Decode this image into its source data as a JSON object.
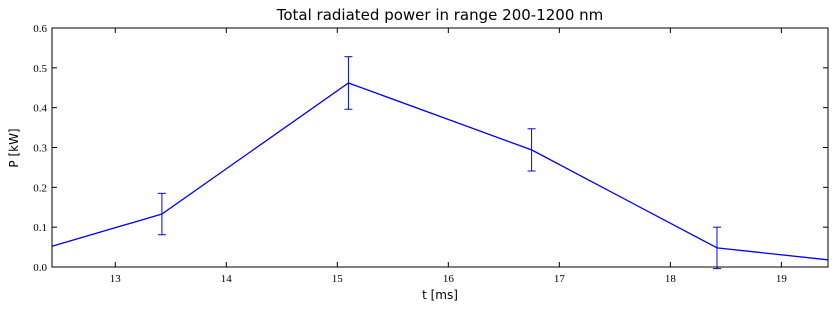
{
  "chart_data": {
    "type": "line",
    "title": "Total radiated power in range 200-1200 nm",
    "x_label": "t [ms]",
    "y_label": "P [kW]",
    "x": [
      12.43,
      13.42,
      15.1,
      16.75,
      18.42,
      19.42
    ],
    "series": [
      {
        "name": "P",
        "color": "#0000ff",
        "values": [
          0.052,
          0.133,
          0.462,
          0.294,
          0.048,
          0.018
        ],
        "errors": [
          null,
          0.052,
          0.066,
          0.053,
          0.052,
          null
        ]
      }
    ],
    "xlim": [
      12.43,
      19.42
    ],
    "xticks": [
      13,
      14,
      15,
      16,
      17,
      18,
      19
    ],
    "ylim": [
      0,
      0.6
    ],
    "yticks": [
      {
        "value": 0,
        "label": "0.0"
      },
      0.1,
      0.2,
      0.3,
      0.4,
      0.5,
      0.6
    ]
  }
}
